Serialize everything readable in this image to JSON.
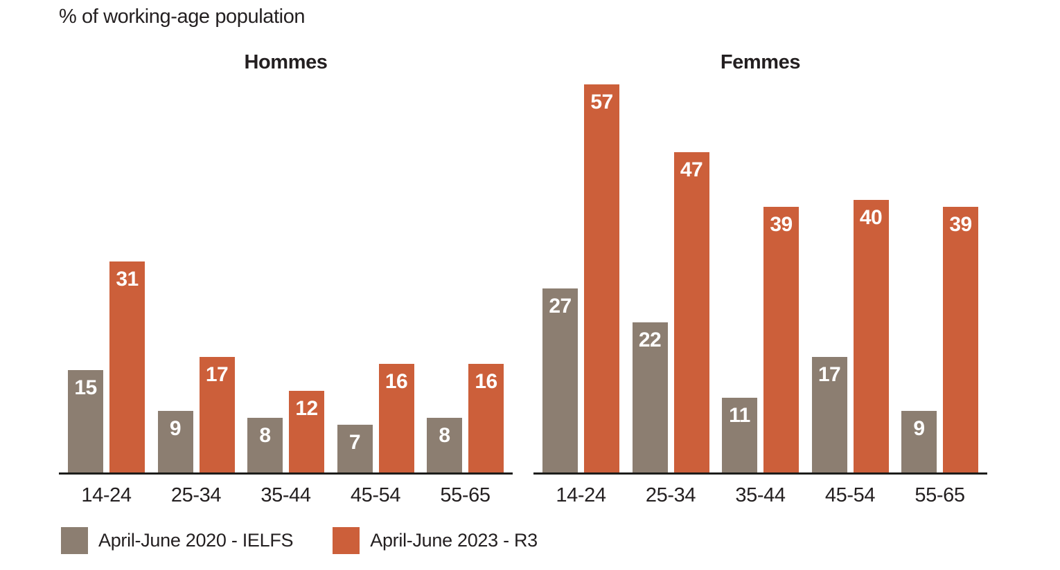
{
  "title": "% of working-age population",
  "colors": {
    "series_2020": "#8c7e71",
    "series_2023": "#cc5f3a",
    "axis": "#1d1d1b",
    "text": "#231f20",
    "value_label": "#ffffff",
    "background": "#ffffff"
  },
  "legend": [
    {
      "label": "April-June 2020 - IELFS",
      "color_key": "series_2020"
    },
    {
      "label": "April-June 2023 - R3",
      "color_key": "series_2023"
    }
  ],
  "chart_data": {
    "type": "bar",
    "title": "% of working-age population",
    "categories": [
      "14-24",
      "25-34",
      "35-44",
      "45-54",
      "55-65"
    ],
    "panels": [
      {
        "title": "Hommes",
        "series": [
          {
            "name": "April-June 2020 - IELFS",
            "values": [
              15,
              9,
              8,
              7,
              8
            ]
          },
          {
            "name": "April-June 2023 - R3",
            "values": [
              31,
              17,
              12,
              16,
              16
            ]
          }
        ]
      },
      {
        "title": "Femmes",
        "series": [
          {
            "name": "April-June 2020 - IELFS",
            "values": [
              27,
              22,
              11,
              17,
              9
            ]
          },
          {
            "name": "April-June 2023 - R3",
            "values": [
              57,
              47,
              39,
              40,
              39
            ]
          }
        ]
      }
    ],
    "xlabel": "",
    "ylabel": "% of working-age population",
    "ylim": [
      0,
      57
    ],
    "grid": false,
    "legend_position": "bottom-left",
    "value_labels": "inside-top-white"
  }
}
